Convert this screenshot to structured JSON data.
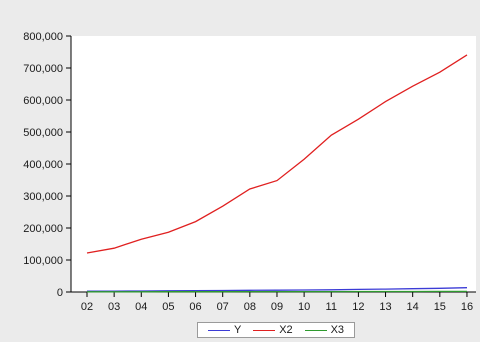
{
  "chart_data": {
    "type": "line",
    "x": [
      "02",
      "03",
      "04",
      "05",
      "06",
      "07",
      "08",
      "09",
      "10",
      "11",
      "12",
      "13",
      "14",
      "15",
      "16"
    ],
    "ylim": [
      0,
      800000
    ],
    "yticks": [
      0,
      100000,
      200000,
      300000,
      400000,
      500000,
      600000,
      700000,
      800000
    ],
    "ytick_labels": [
      "0",
      "100,000",
      "200,000",
      "300,000",
      "400,000",
      "500,000",
      "600,000",
      "700,000",
      "800,000"
    ],
    "series": [
      {
        "name": "Y",
        "color": "#3b3bd6",
        "values": [
          2500,
          2800,
          3100,
          3600,
          4200,
          4700,
          5200,
          5600,
          6200,
          7000,
          8000,
          9000,
          10200,
          11500,
          13500
        ]
      },
      {
        "name": "X2",
        "color": "#e02020",
        "values": [
          122000,
          137000,
          165000,
          187000,
          220000,
          268000,
          322000,
          348000,
          415000,
          490000,
          540000,
          595000,
          643000,
          687000,
          741000
        ]
      },
      {
        "name": "X3",
        "color": "#2e9a2e",
        "values": [
          500,
          600,
          700,
          800,
          900,
          1000,
          1100,
          1200,
          1300,
          1400,
          1500,
          1600,
          1700,
          1800,
          1900
        ]
      }
    ],
    "grid": false,
    "legend_position": "bottom-center"
  }
}
